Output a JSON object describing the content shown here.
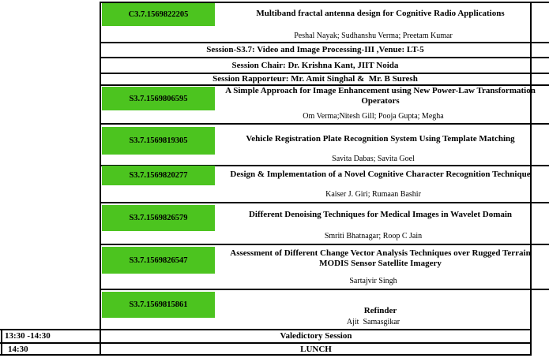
{
  "colors": {
    "highlight_green": "#4CC41F",
    "border": "#000000",
    "background": "#FFFFFF",
    "text": "#000000"
  },
  "papers": [
    {
      "id": "C3.7.1569822205",
      "title": "Multiband fractal antenna design for Cognitive Radio Applications",
      "authors": "Peshal Nayak; Sudhanshu Verma; Preetam Kumar"
    },
    {
      "id": "S3.7.1569806595",
      "title": "A Simple Approach for Image Enhancement using New Power-Law Transformation\nOperators",
      "authors": "Om Verma;Nitesh Gill; Pooja Gupta; Megha"
    },
    {
      "id": "S3.7.1569819305",
      "title": "Vehicle Registration Plate Recognition System Using Template Matching",
      "authors": "Savita Dabas; Savita Goel"
    },
    {
      "id": "S3.7.1569820277",
      "title": "Design & Implementation of a Novel Cognitive Character Recognition Technique",
      "authors": "Kaiser J. Giri; Rumaan Bashir"
    },
    {
      "id": "S3.7.1569826579",
      "title": "Different Denoising Techniques for Medical Images in Wavelet Domain",
      "authors": "Smriti Bhatnagar; Roop C Jain"
    },
    {
      "id": "S3.7.1569826547",
      "title": "Assessment of Different Change Vector Analysis Techniques over Rugged Terrain\nMODIS Sensor Satellite Imagery",
      "authors": "Sartajvir Singh"
    },
    {
      "id": "S3.7.1569815861",
      "title": "Refinder",
      "authors": "Ajit  Samasgikar"
    }
  ],
  "session": {
    "info": "Session-S3.7: Video and Image Processing-III ,Venue: LT-5",
    "chair": "Session Chair: Dr. Krishna Kant, JIIT Noida",
    "rapporteur": "Session Rapporteur: Mr. Amit Singhal &  Mr. B Suresh"
  },
  "schedule": [
    {
      "time": "13:30 -14:30",
      "event": "Valedictory Session"
    },
    {
      "time": "14:30",
      "event": "LUNCH"
    }
  ]
}
